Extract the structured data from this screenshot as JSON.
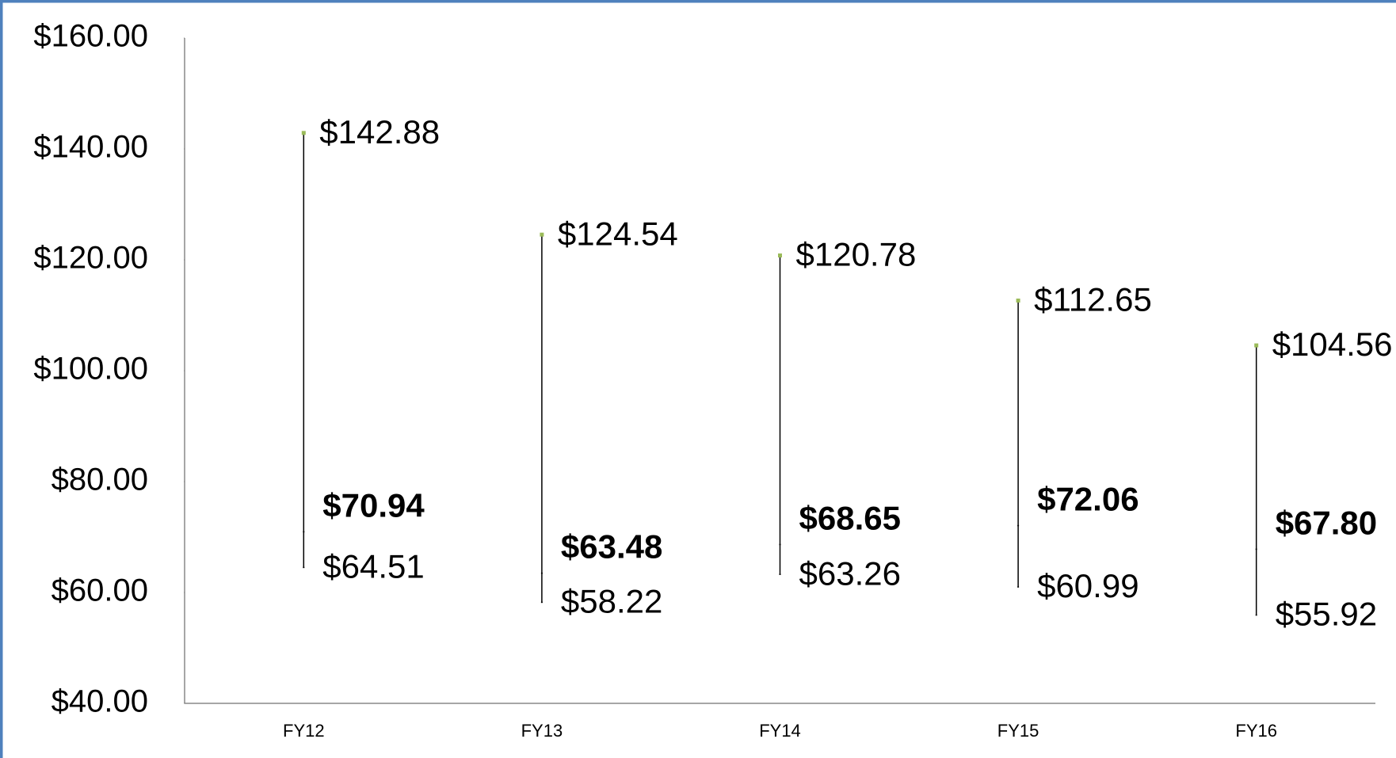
{
  "chart_data": {
    "type": "high-low",
    "categories": [
      "FY12",
      "FY13",
      "FY14",
      "FY15",
      "FY16"
    ],
    "series": [
      {
        "color": "#000000",
        "values": [
          142.88,
          124.54,
          120.78,
          112.65,
          104.56
        ],
        "value_labels": [
          "$142.88",
          "$124.54",
          "$120.78",
          "$112.65",
          "$104.56"
        ]
      },
      {
        "color": "#000000",
        "values": [
          64.51,
          58.22,
          63.26,
          60.99,
          55.92
        ],
        "value_labels": [
          "$64.51",
          "$58.22",
          "$63.26",
          "$60.99",
          "$55.92"
        ]
      },
      {
        "color": "#000000",
        "values": [
          70.94,
          63.48,
          68.65,
          72.06,
          67.8
        ],
        "value_labels": [
          "$70.94",
          "$63.48",
          "$68.65",
          "$72.06",
          "$67.80"
        ]
      }
    ],
    "ylim": [
      40,
      160
    ],
    "yticks": [
      {
        "value": 40,
        "label": "$40.00"
      },
      {
        "value": 60,
        "label": "$60.00"
      },
      {
        "value": 80,
        "label": "$80.00"
      },
      {
        "value": 100,
        "label": "$100.00"
      },
      {
        "value": 120,
        "label": "$120.00"
      },
      {
        "value": 140,
        "label": "$140.00"
      },
      {
        "value": 160,
        "label": "$160.00"
      }
    ],
    "grid": false
  }
}
